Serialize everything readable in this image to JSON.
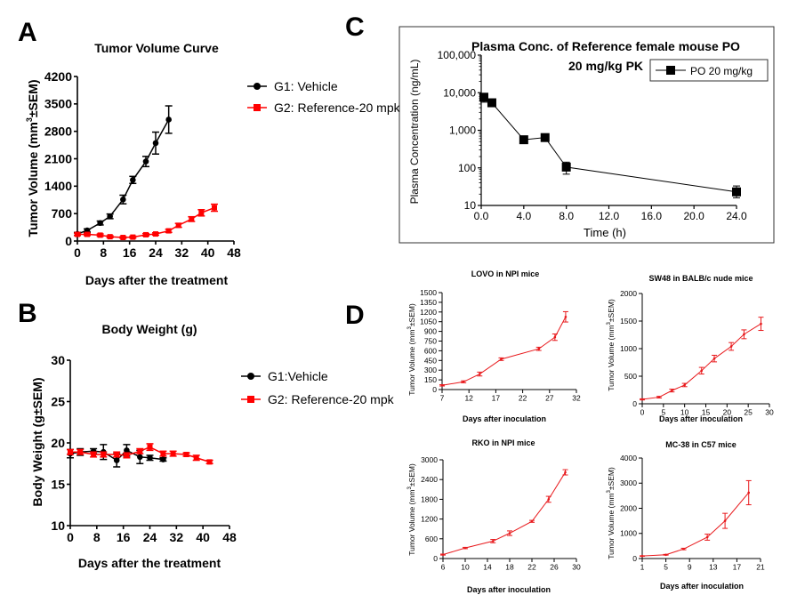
{
  "panel_letters": [
    "A",
    "B",
    "C",
    "D"
  ],
  "chart_data": [
    {
      "id": "A",
      "type": "line",
      "title": "Tumor Volume Curve",
      "xlabel": "Days after the treatment",
      "ylabel_parts": [
        "Tumor Volume (mm",
        "3",
        "±SEM)"
      ],
      "xlim": [
        0,
        48
      ],
      "ylim": [
        0,
        4200
      ],
      "xticks": [
        0,
        8,
        16,
        24,
        32,
        40,
        48
      ],
      "yticks": [
        0,
        700,
        1400,
        2100,
        2800,
        3500,
        4200
      ],
      "legend": "right",
      "series": [
        {
          "name": "G1: Vehicle",
          "color": "#000000",
          "marker": "circle",
          "x": [
            0,
            3,
            7,
            10,
            14,
            17,
            21,
            24,
            28
          ],
          "y": [
            180,
            270,
            460,
            630,
            1060,
            1560,
            2030,
            2500,
            3100
          ],
          "err": [
            40,
            40,
            50,
            60,
            110,
            90,
            130,
            280,
            350
          ]
        },
        {
          "name": "G2: Reference-20 mpk",
          "color": "#ff0000",
          "marker": "square",
          "x": [
            0,
            3,
            7,
            10,
            14,
            17,
            21,
            24,
            28,
            31,
            35,
            38,
            42
          ],
          "y": [
            170,
            170,
            150,
            110,
            90,
            100,
            160,
            180,
            260,
            400,
            560,
            720,
            850
          ],
          "err": [
            30,
            30,
            30,
            25,
            20,
            25,
            30,
            30,
            40,
            50,
            60,
            80,
            90
          ]
        }
      ]
    },
    {
      "id": "B",
      "type": "line",
      "title": "Body Weight (g)",
      "xlabel": "Days after the treatment",
      "ylabel": "Body Weight (g±SEM)",
      "xlim": [
        0,
        48
      ],
      "ylim": [
        10,
        30
      ],
      "xticks": [
        0,
        8,
        16,
        24,
        32,
        40,
        48
      ],
      "yticks": [
        10,
        15,
        20,
        25,
        30
      ],
      "legend": "right",
      "series": [
        {
          "name": "G1:Vehicle",
          "color": "#000000",
          "marker": "circle",
          "x": [
            0,
            3,
            7,
            10,
            14,
            17,
            21,
            24,
            28
          ],
          "y": [
            18.7,
            18.9,
            19.0,
            18.9,
            17.9,
            19.1,
            18.3,
            18.2,
            18.0
          ],
          "err": [
            0.5,
            0.4,
            0.3,
            0.9,
            0.8,
            0.7,
            0.8,
            0.3,
            0.2
          ]
        },
        {
          "name": "G2: Reference-20 mpk",
          "color": "#ff0000",
          "marker": "square",
          "x": [
            0,
            3,
            7,
            10,
            14,
            17,
            21,
            24,
            28,
            31,
            35,
            38,
            42
          ],
          "y": [
            18.9,
            18.9,
            18.6,
            18.6,
            18.6,
            18.5,
            19.0,
            19.5,
            18.7,
            18.7,
            18.6,
            18.2,
            17.7
          ],
          "err": [
            0.3,
            0.3,
            0.3,
            0.3,
            0.3,
            0.3,
            0.3,
            0.4,
            0.3,
            0.3,
            0.2,
            0.3,
            0.2
          ]
        }
      ]
    },
    {
      "id": "C",
      "type": "line",
      "title_lines": [
        "Plasma Conc. of Reference female mouse PO",
        "20 mg/kg PK"
      ],
      "xlabel": "Time (h)",
      "ylabel": "Plasma Concentration (ng/mL)",
      "yscale": "log",
      "xlim": [
        0,
        24
      ],
      "ylim": [
        10,
        100000
      ],
      "xticks": [
        0,
        4,
        8,
        12,
        16,
        20,
        24
      ],
      "xtick_labels": [
        "0.0",
        "4.0",
        "8.0",
        "12.0",
        "16.0",
        "20.0",
        "24.0"
      ],
      "yticks": [
        10,
        100,
        1000,
        10000,
        100000
      ],
      "ytick_labels": [
        "10",
        "100",
        "1,000",
        "10,000",
        "100,000"
      ],
      "legend": "top-right",
      "series": [
        {
          "name": "PO 20  mg/kg",
          "color": "#000000",
          "marker": "square",
          "x": [
            0.25,
            1,
            4,
            6,
            8,
            24
          ],
          "y": [
            7600,
            5400,
            560,
            640,
            105,
            23
          ],
          "err_low": [
            5600,
            4700,
            480,
            560,
            68,
            16
          ],
          "err_high": [
            9600,
            6100,
            640,
            720,
            142,
            33
          ]
        }
      ]
    },
    {
      "id": "D1",
      "type": "line",
      "title": "LOVO in NPI mice",
      "xlabel": "Days after inoculation",
      "ylabel_parts": [
        "Tumor Volume (mm",
        "3",
        "±SEM)"
      ],
      "xlim": [
        7,
        32
      ],
      "ylim": [
        0,
        1500
      ],
      "xticks": [
        7,
        12,
        17,
        22,
        27,
        32
      ],
      "yticks": [
        0,
        150,
        300,
        450,
        600,
        750,
        900,
        1050,
        1200,
        1350,
        1500
      ],
      "series": [
        {
          "color": "#e8191c",
          "x": [
            7,
            11,
            14,
            18,
            25,
            28,
            30
          ],
          "y": [
            65,
            120,
            240,
            470,
            630,
            810,
            1125
          ],
          "err": [
            10,
            15,
            30,
            20,
            25,
            50,
            80
          ]
        }
      ]
    },
    {
      "id": "D2",
      "type": "line",
      "title": "SW48 in BALB/c nude mice",
      "xlabel": "Days after inoculation",
      "ylabel_parts": [
        "Tumor Volume (mm",
        "3",
        "±SEM)"
      ],
      "xlim": [
        0,
        30
      ],
      "ylim": [
        0,
        2000
      ],
      "xticks": [
        0,
        5,
        10,
        15,
        20,
        25,
        30
      ],
      "yticks": [
        0,
        500,
        1000,
        1500,
        2000
      ],
      "series": [
        {
          "color": "#e8191c",
          "x": [
            0,
            4,
            7,
            10,
            14,
            17,
            21,
            24,
            28
          ],
          "y": [
            80,
            120,
            240,
            340,
            600,
            820,
            1040,
            1260,
            1450
          ],
          "err": [
            10,
            15,
            25,
            30,
            60,
            60,
            70,
            80,
            120
          ]
        }
      ]
    },
    {
      "id": "D3",
      "type": "line",
      "title": "RKO in NPI mice",
      "xlabel": "Days after inoculation",
      "ylabel_parts": [
        "Tumor Volume (mm",
        "3",
        "±SEM)"
      ],
      "xlim": [
        6,
        30
      ],
      "ylim": [
        0,
        3000
      ],
      "xticks": [
        6,
        10,
        14,
        18,
        22,
        26,
        30
      ],
      "yticks": [
        0,
        600,
        1200,
        1800,
        2400,
        3000
      ],
      "series": [
        {
          "color": "#e8191c",
          "x": [
            6,
            10,
            15,
            18,
            22,
            25,
            28
          ],
          "y": [
            120,
            320,
            530,
            770,
            1130,
            1800,
            2620
          ],
          "err": [
            15,
            20,
            50,
            70,
            30,
            90,
            80
          ]
        }
      ]
    },
    {
      "id": "D4",
      "type": "line",
      "title": "MC-38 in C57 mice",
      "xlabel": "Days after inoculation",
      "ylabel_parts": [
        "Tumor Volume (mm",
        "3",
        "±SEM)"
      ],
      "xlim": [
        1,
        21
      ],
      "ylim": [
        0,
        4000
      ],
      "xticks": [
        1,
        5,
        9,
        13,
        17,
        21
      ],
      "yticks": [
        0,
        1000,
        2000,
        3000,
        4000
      ],
      "series": [
        {
          "color": "#e8191c",
          "x": [
            1,
            5,
            8,
            12,
            15,
            19
          ],
          "y": [
            100,
            150,
            380,
            850,
            1500,
            2620
          ],
          "err": [
            10,
            15,
            30,
            120,
            300,
            480
          ]
        }
      ]
    }
  ]
}
